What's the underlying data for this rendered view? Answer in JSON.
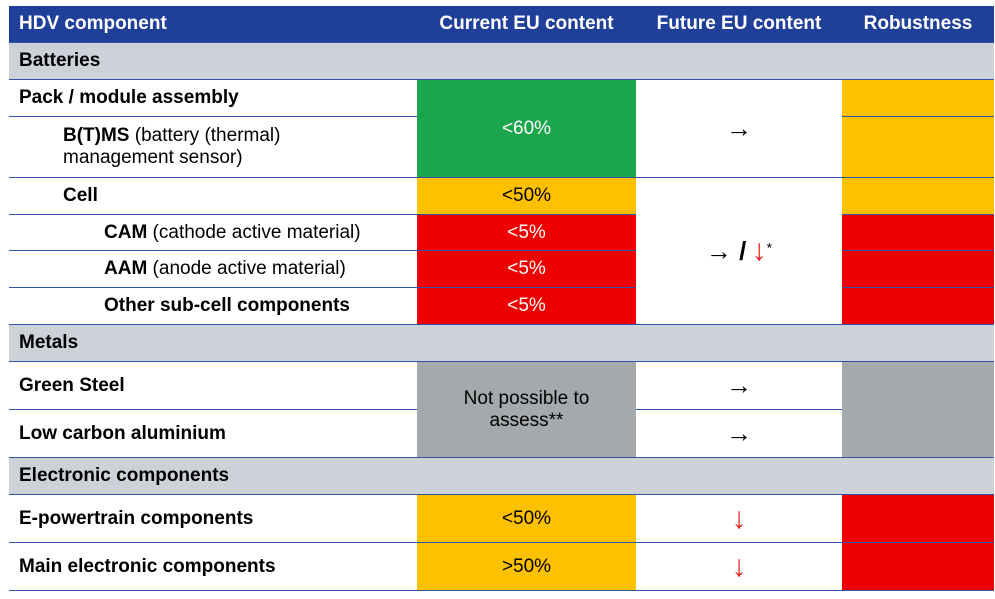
{
  "header": {
    "col1": "HDV component",
    "col2": "Current EU content",
    "col3": "Future EU content",
    "col4": "Robustness"
  },
  "sections": {
    "batteries": "Batteries",
    "metals": "Metals",
    "electronics": "Electronic components"
  },
  "rows": {
    "pack": {
      "label": "Pack / module assembly"
    },
    "btms": {
      "label_bold": "B(T)MS",
      "label_rest": " (battery (thermal)",
      "label_line2": "management sensor)"
    },
    "cell": {
      "label": "Cell",
      "current": "<50%"
    },
    "cam": {
      "label_bold": "CAM",
      "label_rest": " (cathode active material)",
      "current": "<5%"
    },
    "aam": {
      "label_bold": "AAM",
      "label_rest": " (anode active material)",
      "current": "<5%"
    },
    "other": {
      "label": "Other sub-cell components",
      "current": "<5%"
    },
    "steel": {
      "label": "Green Steel",
      "future": "→"
    },
    "alu": {
      "label": "Low carbon aluminium",
      "future": "→"
    },
    "epower": {
      "label": "E-powertrain components",
      "current": "<50%",
      "future": "↓"
    },
    "mainelec": {
      "label": "Main electronic components",
      "current": ">50%",
      "future": "↓"
    }
  },
  "merged": {
    "pack_btms_current": "<60%",
    "pack_btms_future": "→",
    "cell_group_future_a": "→ /",
    "cell_group_future_b": "↓",
    "cell_group_future_ast": "*",
    "metals_current_line1": "Not possible to",
    "metals_current_line2": "assess**"
  },
  "colors": {
    "header": "#203f98",
    "section": "#cdd1d8",
    "green": "#1ba64b",
    "amber": "#fdc100",
    "red": "#ee0000",
    "grey": "#a5a9ac",
    "red_arrow": "#e42420"
  }
}
